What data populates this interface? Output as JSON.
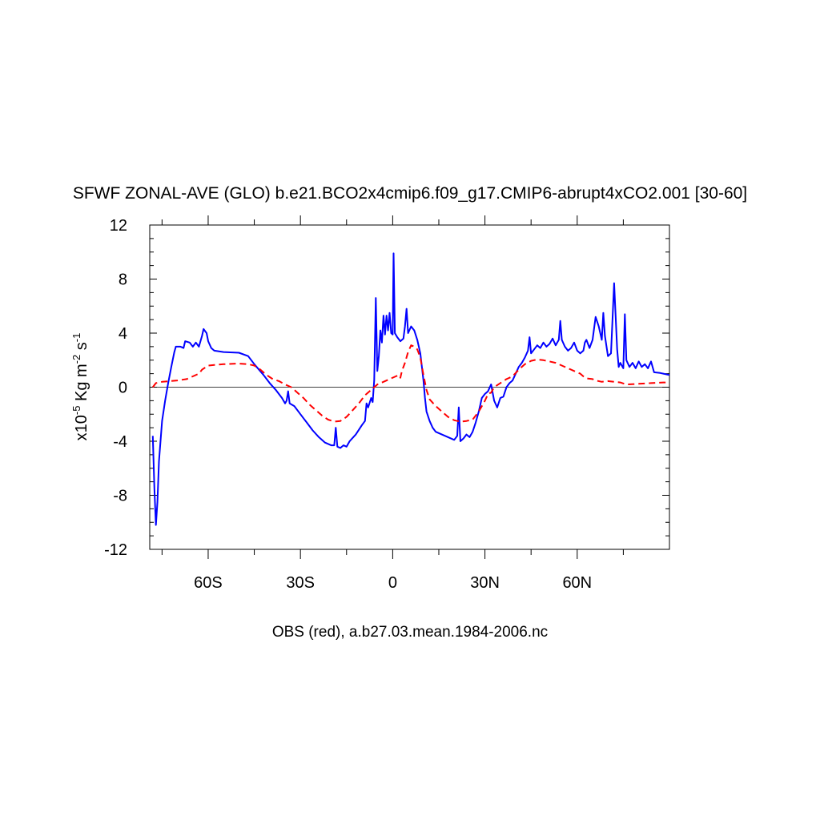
{
  "chart_data": {
    "type": "line",
    "title": "SFWF ZONAL-AVE (GLO) b.e21.BCO2x4cmip6.f09_g17.CMIP6-abrupt4xCO2.001 [30-60]",
    "ylabel": {
      "base": "x10",
      "exp1": "-5",
      "unit1": " Kg m",
      "exp2": "-2",
      "unit2": " s",
      "exp3": "-1"
    },
    "xlabel": "OBS (red), a.b27.03.mean.1984-2006.nc",
    "xlim": [
      -79,
      90
    ],
    "ylim": [
      -12,
      12
    ],
    "x_ticks": [
      {
        "value": -60,
        "label": "60S"
      },
      {
        "value": -30,
        "label": "30S"
      },
      {
        "value": 0,
        "label": "0"
      },
      {
        "value": 30,
        "label": "30N"
      },
      {
        "value": 60,
        "label": "60N"
      }
    ],
    "y_ticks": [
      {
        "value": 12,
        "label": "12"
      },
      {
        "value": 8,
        "label": "8"
      },
      {
        "value": 4,
        "label": "4"
      },
      {
        "value": 0,
        "label": "0"
      },
      {
        "value": -4,
        "label": "-4"
      },
      {
        "value": -8,
        "label": "-8"
      },
      {
        "value": -12,
        "label": "-12"
      }
    ],
    "zero_line": true,
    "series": [
      {
        "color": "#0000ff",
        "dash": "solid",
        "points": [
          [
            -78,
            -3.6
          ],
          [
            -77.5,
            -7.5
          ],
          [
            -77,
            -10.2
          ],
          [
            -76.5,
            -8.5
          ],
          [
            -76,
            -5.5
          ],
          [
            -75,
            -2.5
          ],
          [
            -74,
            -1.0
          ],
          [
            -73,
            0.3
          ],
          [
            -72,
            1.5
          ],
          [
            -71,
            2.6
          ],
          [
            -70.5,
            3.0
          ],
          [
            -69,
            3.0
          ],
          [
            -68,
            2.9
          ],
          [
            -67.5,
            3.4
          ],
          [
            -66,
            3.3
          ],
          [
            -65,
            3.0
          ],
          [
            -64,
            3.3
          ],
          [
            -63,
            3.0
          ],
          [
            -62,
            3.8
          ],
          [
            -61.5,
            4.3
          ],
          [
            -60.5,
            4.0
          ],
          [
            -60,
            3.4
          ],
          [
            -59,
            2.9
          ],
          [
            -58,
            2.7
          ],
          [
            -55,
            2.6
          ],
          [
            -50,
            2.55
          ],
          [
            -47,
            2.3
          ],
          [
            -45,
            1.7
          ],
          [
            -42,
            0.9
          ],
          [
            -40,
            0.3
          ],
          [
            -38,
            -0.2
          ],
          [
            -36,
            -0.8
          ],
          [
            -35,
            -1.2
          ],
          [
            -34.5,
            -1.0
          ],
          [
            -34,
            -0.3
          ],
          [
            -33.5,
            -1.2
          ],
          [
            -32,
            -1.4
          ],
          [
            -30,
            -2.0
          ],
          [
            -28,
            -2.6
          ],
          [
            -26,
            -3.2
          ],
          [
            -24,
            -3.7
          ],
          [
            -22,
            -4.1
          ],
          [
            -20,
            -4.3
          ],
          [
            -19,
            -4.3
          ],
          [
            -18.5,
            -3.0
          ],
          [
            -18,
            -4.4
          ],
          [
            -17,
            -4.5
          ],
          [
            -16,
            -4.3
          ],
          [
            -15,
            -4.4
          ],
          [
            -14,
            -4.0
          ],
          [
            -12,
            -3.5
          ],
          [
            -10,
            -2.8
          ],
          [
            -9,
            -2.5
          ],
          [
            -8.5,
            -1.2
          ],
          [
            -8,
            -1.5
          ],
          [
            -7,
            -0.8
          ],
          [
            -6.5,
            -1.1
          ],
          [
            -6,
            0.5
          ],
          [
            -5.5,
            6.6
          ],
          [
            -5,
            1.2
          ],
          [
            -4.5,
            2.3
          ],
          [
            -4,
            4.2
          ],
          [
            -3.5,
            3.3
          ],
          [
            -3,
            5.3
          ],
          [
            -2.5,
            3.9
          ],
          [
            -2,
            5.3
          ],
          [
            -1.5,
            4.2
          ],
          [
            -1,
            5.5
          ],
          [
            -0.5,
            4.0
          ],
          [
            0,
            3.9
          ],
          [
            0.3,
            9.9
          ],
          [
            0.7,
            4.0
          ],
          [
            1.5,
            3.7
          ],
          [
            2.5,
            3.4
          ],
          [
            3.5,
            3.6
          ],
          [
            4,
            4.5
          ],
          [
            4.5,
            5.8
          ],
          [
            5,
            4.0
          ],
          [
            6,
            4.5
          ],
          [
            7,
            4.2
          ],
          [
            8,
            3.5
          ],
          [
            9,
            2.5
          ],
          [
            10,
            0.5
          ],
          [
            10.5,
            -0.8
          ],
          [
            11,
            -1.8
          ],
          [
            12,
            -2.5
          ],
          [
            13,
            -3.0
          ],
          [
            14,
            -3.3
          ],
          [
            16,
            -3.5
          ],
          [
            18,
            -3.7
          ],
          [
            20,
            -3.9
          ],
          [
            21,
            -3.6
          ],
          [
            21.5,
            -1.5
          ],
          [
            22,
            -4.0
          ],
          [
            23,
            -3.8
          ],
          [
            24,
            -3.5
          ],
          [
            25,
            -3.7
          ],
          [
            26,
            -3.3
          ],
          [
            27,
            -2.6
          ],
          [
            28,
            -1.8
          ],
          [
            29,
            -0.8
          ],
          [
            30,
            -0.5
          ],
          [
            31,
            -0.3
          ],
          [
            32,
            0.2
          ],
          [
            33,
            -1.0
          ],
          [
            34,
            -1.5
          ],
          [
            35,
            -0.8
          ],
          [
            36,
            -0.7
          ],
          [
            37,
            0.0
          ],
          [
            38,
            0.3
          ],
          [
            39,
            0.5
          ],
          [
            40,
            1.0
          ],
          [
            41,
            1.5
          ],
          [
            42,
            1.8
          ],
          [
            43,
            2.2
          ],
          [
            44,
            2.7
          ],
          [
            44.5,
            3.7
          ],
          [
            45,
            2.5
          ],
          [
            46,
            2.8
          ],
          [
            47,
            3.1
          ],
          [
            48,
            2.9
          ],
          [
            49,
            3.3
          ],
          [
            50,
            3.0
          ],
          [
            51,
            3.2
          ],
          [
            52,
            3.6
          ],
          [
            53,
            3.1
          ],
          [
            54,
            3.5
          ],
          [
            54.5,
            4.9
          ],
          [
            55,
            3.5
          ],
          [
            56,
            3.0
          ],
          [
            57,
            2.7
          ],
          [
            58,
            2.9
          ],
          [
            59,
            3.3
          ],
          [
            60,
            2.7
          ],
          [
            61,
            2.5
          ],
          [
            62,
            2.7
          ],
          [
            62.5,
            3.3
          ],
          [
            63,
            3.5
          ],
          [
            64,
            2.9
          ],
          [
            65,
            3.5
          ],
          [
            66,
            5.2
          ],
          [
            67,
            4.5
          ],
          [
            68,
            3.5
          ],
          [
            68.5,
            5.5
          ],
          [
            69,
            3.8
          ],
          [
            70,
            2.3
          ],
          [
            71,
            2.5
          ],
          [
            72,
            7.7
          ],
          [
            73,
            2.8
          ],
          [
            73.5,
            1.5
          ],
          [
            74,
            1.8
          ],
          [
            75,
            1.4
          ],
          [
            75.5,
            5.4
          ],
          [
            76,
            2.0
          ],
          [
            77,
            1.5
          ],
          [
            78,
            1.8
          ],
          [
            79,
            1.4
          ],
          [
            80,
            1.9
          ],
          [
            81,
            1.5
          ],
          [
            82,
            1.7
          ],
          [
            83,
            1.4
          ],
          [
            84,
            1.9
          ],
          [
            85,
            1.1
          ],
          [
            87,
            1.05
          ],
          [
            88,
            1.0
          ],
          [
            90,
            0.9
          ]
        ]
      },
      {
        "color": "#ff0000",
        "dash": "dashed",
        "points": [
          [
            -78,
            0.0
          ],
          [
            -77,
            0.3
          ],
          [
            -75,
            0.4
          ],
          [
            -70,
            0.5
          ],
          [
            -67,
            0.6
          ],
          [
            -65,
            0.8
          ],
          [
            -63,
            1.0
          ],
          [
            -62,
            1.3
          ],
          [
            -60,
            1.6
          ],
          [
            -58,
            1.65
          ],
          [
            -55,
            1.7
          ],
          [
            -50,
            1.75
          ],
          [
            -47,
            1.7
          ],
          [
            -45,
            1.6
          ],
          [
            -43,
            1.3
          ],
          [
            -41,
            0.9
          ],
          [
            -39,
            0.6
          ],
          [
            -37,
            0.45
          ],
          [
            -35,
            0.2
          ],
          [
            -33,
            0.0
          ],
          [
            -31,
            -0.4
          ],
          [
            -29,
            -0.8
          ],
          [
            -27,
            -1.3
          ],
          [
            -25,
            -1.7
          ],
          [
            -23,
            -2.1
          ],
          [
            -21,
            -2.4
          ],
          [
            -19,
            -2.55
          ],
          [
            -17,
            -2.5
          ],
          [
            -15,
            -2.2
          ],
          [
            -13,
            -1.7
          ],
          [
            -11,
            -1.2
          ],
          [
            -9,
            -0.6
          ],
          [
            -7,
            -0.2
          ],
          [
            -5,
            0.2
          ],
          [
            -3,
            0.4
          ],
          [
            -1,
            0.6
          ],
          [
            1,
            0.8
          ],
          [
            2,
            0.9
          ],
          [
            2.5,
            0.7
          ],
          [
            3,
            1.2
          ],
          [
            4,
            1.8
          ],
          [
            5,
            2.6
          ],
          [
            6,
            3.1
          ],
          [
            7,
            3.0
          ],
          [
            8,
            2.8
          ],
          [
            9,
            2.2
          ],
          [
            10,
            0.9
          ],
          [
            11,
            -0.2
          ],
          [
            12,
            -0.9
          ],
          [
            14,
            -1.4
          ],
          [
            16,
            -1.8
          ],
          [
            18,
            -2.2
          ],
          [
            20,
            -2.45
          ],
          [
            22,
            -2.55
          ],
          [
            24,
            -2.5
          ],
          [
            26,
            -2.4
          ],
          [
            28,
            -1.8
          ],
          [
            30,
            -1.0
          ],
          [
            31,
            -0.5
          ],
          [
            32,
            -0.4
          ],
          [
            33,
            0.0
          ],
          [
            35,
            0.3
          ],
          [
            37,
            0.6
          ],
          [
            39,
            0.8
          ],
          [
            41,
            1.3
          ],
          [
            43,
            1.7
          ],
          [
            45,
            1.95
          ],
          [
            47,
            2.05
          ],
          [
            49,
            2.0
          ],
          [
            51,
            1.9
          ],
          [
            53,
            1.8
          ],
          [
            55,
            1.6
          ],
          [
            57,
            1.4
          ],
          [
            59,
            1.2
          ],
          [
            61,
            1.0
          ],
          [
            62,
            0.8
          ],
          [
            63,
            0.65
          ],
          [
            65,
            0.6
          ],
          [
            66,
            0.5
          ],
          [
            68,
            0.4
          ],
          [
            70,
            0.45
          ],
          [
            72,
            0.4
          ],
          [
            74,
            0.35
          ],
          [
            76,
            0.2
          ],
          [
            80,
            0.25
          ],
          [
            84,
            0.3
          ],
          [
            88,
            0.35
          ],
          [
            90,
            0.35
          ]
        ]
      }
    ]
  }
}
